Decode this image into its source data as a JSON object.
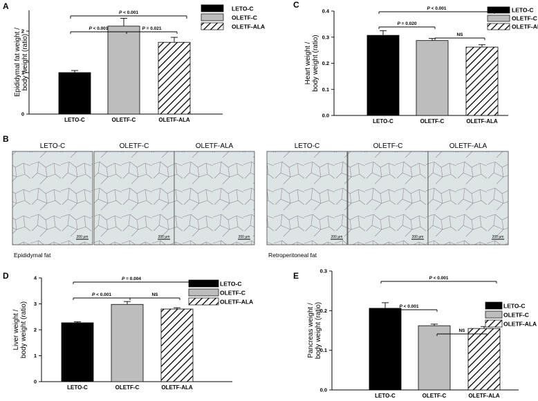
{
  "chart_data": [
    {
      "panel": "A",
      "type": "bar",
      "ylabel": "Epididymal fat weight / body weight (ratio)",
      "ylim": [
        0,
        2.5
      ],
      "yticks": [
        "0",
        "1",
        "2"
      ],
      "categories": [
        "LETO-C",
        "OLETF-C",
        "OLETF-ALA"
      ],
      "values": [
        1.0,
        2.12,
        1.73
      ],
      "errors": [
        0.05,
        0.19,
        0.12
      ],
      "legend": [
        "LETO-C",
        "OLETF-C",
        "OLETF-ALA"
      ],
      "legend_position": "top-right",
      "comparisons": [
        {
          "from": 0,
          "to": 2,
          "label": "P < 0.001"
        },
        {
          "from": 0,
          "to": 1,
          "label": "P < 0.001"
        },
        {
          "from": 1,
          "to": 2,
          "label": "P = 0.021"
        }
      ]
    },
    {
      "panel": "C",
      "type": "bar",
      "ylabel": "Heart weight / body weight (ratio)",
      "ylim": [
        0,
        0.4
      ],
      "yticks": [
        "0.0",
        "0.1",
        "0.2",
        "0.3",
        "0.4"
      ],
      "categories": [
        "LETO-C",
        "OLETF-C",
        "OLETF-ALA"
      ],
      "values": [
        0.307,
        0.287,
        0.262
      ],
      "errors": [
        0.018,
        0.008,
        0.009
      ],
      "legend": [
        "LETO-C",
        "OLETF-C",
        "OLETF-ALA"
      ],
      "legend_position": "top-right",
      "comparisons": [
        {
          "from": 0,
          "to": 2,
          "label": "P < 0.001"
        },
        {
          "from": 0,
          "to": 1,
          "label": "P = 0.020"
        },
        {
          "from": 1,
          "to": 2,
          "label": "NS"
        }
      ]
    },
    {
      "panel": "D",
      "type": "bar",
      "ylabel": "Liver weight / body weight (ratio)",
      "ylim": [
        0,
        4
      ],
      "yticks": [
        "0",
        "1",
        "2",
        "3",
        "4"
      ],
      "categories": [
        "LETO-C",
        "OLETF-C",
        "OLETF-ALA"
      ],
      "values": [
        2.27,
        2.98,
        2.8
      ],
      "errors": [
        0.04,
        0.11,
        0.05
      ],
      "legend": [
        "LETO-C",
        "OLETF-C",
        "OLETF-ALA"
      ],
      "legend_position": "top-right",
      "comparisons": [
        {
          "from": 0,
          "to": 2,
          "label": "P = 0.004"
        },
        {
          "from": 0,
          "to": 1,
          "label": "P < 0.001"
        },
        {
          "from": 1,
          "to": 2,
          "label": "NS"
        }
      ]
    },
    {
      "panel": "E",
      "type": "bar",
      "ylabel": "Pancreas weight / body weight (ratio)",
      "ylim": [
        0,
        0.3
      ],
      "yticks": [
        "0.0",
        "0.1",
        "0.2",
        "0.3"
      ],
      "categories": [
        "LETO-C",
        "OLETF-C",
        "OLETF-ALA"
      ],
      "values": [
        0.206,
        0.162,
        0.155
      ],
      "errors": [
        0.014,
        0.004,
        0.005
      ],
      "legend": [
        "LETO-C",
        "OLETF-C",
        "OLETF-ALA"
      ],
      "legend_position": "top-right",
      "comparisons": [
        {
          "from": 0,
          "to": 2,
          "label": "P < 0.001"
        },
        {
          "from": 0,
          "to": 1,
          "label": "P < 0.001"
        },
        {
          "from": 1,
          "to": 2,
          "label": "NS"
        }
      ]
    }
  ],
  "histology": {
    "panel": "B",
    "groups": [
      {
        "caption": "Epididymal fat",
        "headers": [
          "LETO-C",
          "OLETF-C",
          "OLETF-ALA"
        ]
      },
      {
        "caption": "Retroperitoneal fat",
        "headers": [
          "LETO-C",
          "OLETF-C",
          "OLETF-ALA"
        ]
      }
    ],
    "scale_bar_label": "200 μm"
  },
  "colors": {
    "leto": "#000000",
    "oletf": "#bdbdbd",
    "ala_hatch": "#000000",
    "tissue_bg": "#dfe6e8"
  }
}
